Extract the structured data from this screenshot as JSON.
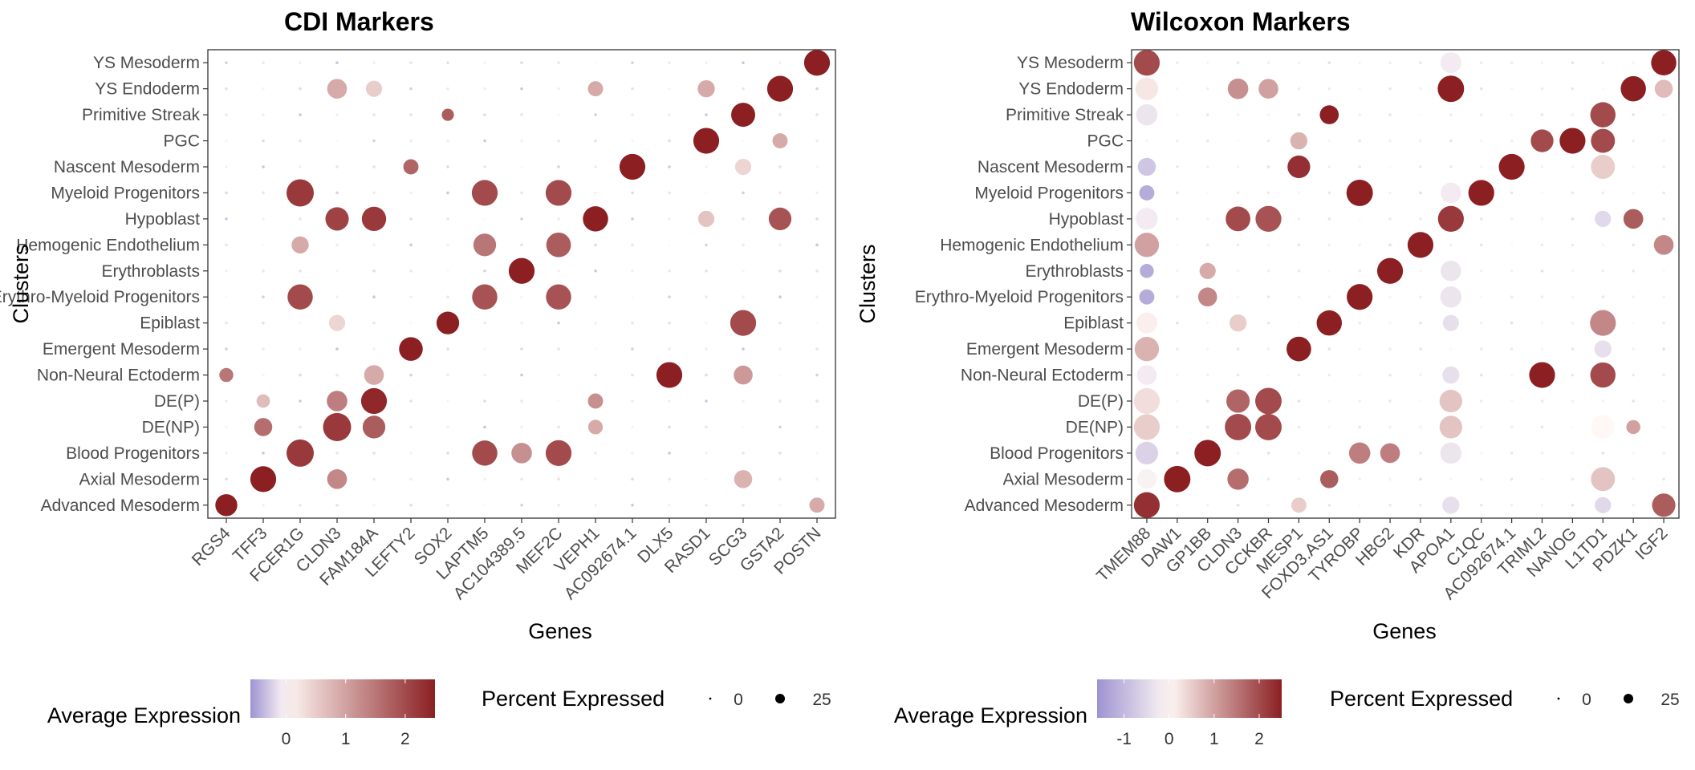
{
  "colors": {
    "low": "#9E93D1",
    "mid": "#FFF8F5",
    "high": "#8B1F22",
    "point_outline": "none"
  },
  "legend_labels": {
    "color_title": "Average Expression",
    "size_title": "Percent Expressed"
  },
  "chart_data": [
    {
      "type": "scatter",
      "title": "CDI Markers",
      "xlabel": "Genes",
      "ylabel": "Clusters",
      "clusters": [
        "Advanced Mesoderm",
        "Axial Mesoderm",
        "Blood Progenitors",
        "DE(NP)",
        "DE(P)",
        "Non-Neural Ectoderm",
        "Emergent Mesoderm",
        "Epiblast",
        "Erythro-Myeloid Progenitors",
        "Erythroblasts",
        "Hemogenic Endothelium",
        "Hypoblast",
        "Myeloid Progenitors",
        "Nascent Mesoderm",
        "PGC",
        "Primitive Streak",
        "YS Endoderm",
        "YS Mesoderm"
      ],
      "genes": [
        "RGS4",
        "TFF3",
        "FCER1G",
        "CLDN3",
        "FAM184A",
        "LEFTY2",
        "SOX2",
        "LAPTM5",
        "AC104389.5",
        "MEF2C",
        "VEPH1",
        "AC092674.1",
        "DLX5",
        "RASD1",
        "SCG3",
        "GSTA2",
        "POSTN"
      ],
      "color_scale": {
        "ticks": [
          0,
          1,
          2
        ],
        "range": [
          -0.6,
          2.5
        ]
      },
      "size_scale": {
        "ticks": [
          0,
          25
        ],
        "max_pct": 45
      },
      "points": [
        {
          "gene": "RGS4",
          "cluster": "Advanced Mesoderm",
          "expr": 2.5,
          "pct": 28
        },
        {
          "gene": "RGS4",
          "cluster": "Non-Neural Ectoderm",
          "expr": 1.5,
          "pct": 10
        },
        {
          "gene": "TFF3",
          "cluster": "Axial Mesoderm",
          "expr": 2.5,
          "pct": 40
        },
        {
          "gene": "TFF3",
          "cluster": "DE(NP)",
          "expr": 1.6,
          "pct": 18
        },
        {
          "gene": "TFF3",
          "cluster": "DE(P)",
          "expr": 0.7,
          "pct": 9
        },
        {
          "gene": "FCER1G",
          "cluster": "Blood Progenitors",
          "expr": 2.2,
          "pct": 45
        },
        {
          "gene": "FCER1G",
          "cluster": "Myeloid Progenitors",
          "expr": 2.2,
          "pct": 45
        },
        {
          "gene": "FCER1G",
          "cluster": "Erythro-Myeloid Progenitors",
          "expr": 2.0,
          "pct": 38
        },
        {
          "gene": "FCER1G",
          "cluster": "Hemogenic Endothelium",
          "expr": 0.9,
          "pct": 16
        },
        {
          "gene": "CLDN3",
          "cluster": "DE(NP)",
          "expr": 2.2,
          "pct": 48
        },
        {
          "gene": "CLDN3",
          "cluster": "Hypoblast",
          "expr": 2.1,
          "pct": 32
        },
        {
          "gene": "CLDN3",
          "cluster": "DE(P)",
          "expr": 1.4,
          "pct": 24
        },
        {
          "gene": "CLDN3",
          "cluster": "Axial Mesoderm",
          "expr": 1.3,
          "pct": 22
        },
        {
          "gene": "CLDN3",
          "cluster": "YS Endoderm",
          "expr": 0.9,
          "pct": 22
        },
        {
          "gene": "CLDN3",
          "cluster": "Epiblast",
          "expr": 0.4,
          "pct": 14
        },
        {
          "gene": "FAM184A",
          "cluster": "DE(P)",
          "expr": 2.4,
          "pct": 40
        },
        {
          "gene": "FAM184A",
          "cluster": "Hypoblast",
          "expr": 2.2,
          "pct": 35
        },
        {
          "gene": "FAM184A",
          "cluster": "DE(NP)",
          "expr": 1.8,
          "pct": 30
        },
        {
          "gene": "FAM184A",
          "cluster": "Non-Neural Ectoderm",
          "expr": 0.9,
          "pct": 22
        },
        {
          "gene": "FAM184A",
          "cluster": "YS Endoderm",
          "expr": 0.5,
          "pct": 14
        },
        {
          "gene": "LEFTY2",
          "cluster": "Emergent Mesoderm",
          "expr": 2.5,
          "pct": 33
        },
        {
          "gene": "LEFTY2",
          "cluster": "Nascent Mesoderm",
          "expr": 1.7,
          "pct": 12
        },
        {
          "gene": "SOX2",
          "cluster": "Epiblast",
          "expr": 2.5,
          "pct": 30
        },
        {
          "gene": "SOX2",
          "cluster": "Primitive Streak",
          "expr": 1.8,
          "pct": 7
        },
        {
          "gene": "LAPTM5",
          "cluster": "Blood Progenitors",
          "expr": 2.0,
          "pct": 38
        },
        {
          "gene": "LAPTM5",
          "cluster": "Myeloid Progenitors",
          "expr": 2.0,
          "pct": 40
        },
        {
          "gene": "LAPTM5",
          "cluster": "Erythro-Myeloid Progenitors",
          "expr": 1.9,
          "pct": 38
        },
        {
          "gene": "LAPTM5",
          "cluster": "Hemogenic Endothelium",
          "expr": 1.5,
          "pct": 30
        },
        {
          "gene": "AC104389.5",
          "cluster": "Erythroblasts",
          "expr": 2.5,
          "pct": 40
        },
        {
          "gene": "AC104389.5",
          "cluster": "Blood Progenitors",
          "expr": 1.2,
          "pct": 24
        },
        {
          "gene": "MEF2C",
          "cluster": "Blood Progenitors",
          "expr": 2.0,
          "pct": 40
        },
        {
          "gene": "MEF2C",
          "cluster": "Myeloid Progenitors",
          "expr": 2.0,
          "pct": 40
        },
        {
          "gene": "MEF2C",
          "cluster": "Erythro-Myeloid Progenitors",
          "expr": 1.9,
          "pct": 38
        },
        {
          "gene": "MEF2C",
          "cluster": "Hemogenic Endothelium",
          "expr": 1.8,
          "pct": 36
        },
        {
          "gene": "VEPH1",
          "cluster": "Hypoblast",
          "expr": 2.5,
          "pct": 38
        },
        {
          "gene": "VEPH1",
          "cluster": "DE(P)",
          "expr": 1.2,
          "pct": 12
        },
        {
          "gene": "VEPH1",
          "cluster": "DE(NP)",
          "expr": 0.9,
          "pct": 11
        },
        {
          "gene": "VEPH1",
          "cluster": "YS Endoderm",
          "expr": 0.9,
          "pct": 12
        },
        {
          "gene": "AC092674.1",
          "cluster": "Nascent Mesoderm",
          "expr": 2.5,
          "pct": 40
        },
        {
          "gene": "DLX5",
          "cluster": "Non-Neural Ectoderm",
          "expr": 2.5,
          "pct": 40
        },
        {
          "gene": "RASD1",
          "cluster": "PGC",
          "expr": 2.5,
          "pct": 40
        },
        {
          "gene": "RASD1",
          "cluster": "YS Endoderm",
          "expr": 0.9,
          "pct": 16
        },
        {
          "gene": "RASD1",
          "cluster": "Hypoblast",
          "expr": 0.6,
          "pct": 14
        },
        {
          "gene": "SCG3",
          "cluster": "Epiblast",
          "expr": 2.0,
          "pct": 40
        },
        {
          "gene": "SCG3",
          "cluster": "Primitive Streak",
          "expr": 2.5,
          "pct": 34
        },
        {
          "gene": "SCG3",
          "cluster": "Non-Neural Ectoderm",
          "expr": 1.1,
          "pct": 20
        },
        {
          "gene": "SCG3",
          "cluster": "Axial Mesoderm",
          "expr": 0.8,
          "pct": 18
        },
        {
          "gene": "SCG3",
          "cluster": "Nascent Mesoderm",
          "expr": 0.4,
          "pct": 14
        },
        {
          "gene": "GSTA2",
          "cluster": "YS Endoderm",
          "expr": 2.5,
          "pct": 40
        },
        {
          "gene": "GSTA2",
          "cluster": "Hypoblast",
          "expr": 1.9,
          "pct": 30
        },
        {
          "gene": "GSTA2",
          "cluster": "PGC",
          "expr": 0.9,
          "pct": 12
        },
        {
          "gene": "POSTN",
          "cluster": "YS Mesoderm",
          "expr": 2.5,
          "pct": 40
        },
        {
          "gene": "POSTN",
          "cluster": "Advanced Mesoderm",
          "expr": 0.9,
          "pct": 12
        }
      ]
    },
    {
      "type": "scatter",
      "title": "Wilcoxon Markers",
      "xlabel": "Genes",
      "ylabel": "Clusters",
      "clusters": [
        "Advanced Mesoderm",
        "Axial Mesoderm",
        "Blood Progenitors",
        "DE(NP)",
        "DE(P)",
        "Non-Neural Ectoderm",
        "Emergent Mesoderm",
        "Epiblast",
        "Erythro-Myeloid Progenitors",
        "Erythroblasts",
        "Hemogenic Endothelium",
        "Hypoblast",
        "Myeloid Progenitors",
        "Nascent Mesoderm",
        "PGC",
        "Primitive Streak",
        "YS Endoderm",
        "YS Mesoderm"
      ],
      "genes": [
        "TMEM88",
        "DAW1",
        "GP1BB",
        "CLDN3",
        "CCKBR",
        "MESP1",
        "FOXD3.AS1",
        "TYROBP",
        "HBG2",
        "KDR",
        "APOA1",
        "C1QC",
        "AC092674.1",
        "TRIML2",
        "NANOG",
        "L1TD1",
        "PDZK1",
        "IGF2"
      ],
      "color_scale": {
        "ticks": [
          -1,
          0,
          1,
          2
        ],
        "range": [
          -1.6,
          2.5
        ]
      },
      "size_scale": {
        "ticks": [
          0,
          25
        ],
        "max_pct": 45
      },
      "points": [
        {
          "gene": "TMEM88",
          "cluster": "Advanced Mesoderm",
          "expr": 2.3,
          "pct": 40
        },
        {
          "gene": "TMEM88",
          "cluster": "YS Mesoderm",
          "expr": 2.0,
          "pct": 40
        },
        {
          "gene": "TMEM88",
          "cluster": "Hemogenic Endothelium",
          "expr": 1.0,
          "pct": 35
        },
        {
          "gene": "TMEM88",
          "cluster": "Emergent Mesoderm",
          "expr": 0.8,
          "pct": 35
        },
        {
          "gene": "TMEM88",
          "cluster": "DE(NP)",
          "expr": 0.5,
          "pct": 40
        },
        {
          "gene": "TMEM88",
          "cluster": "DE(P)",
          "expr": 0.3,
          "pct": 40
        },
        {
          "gene": "TMEM88",
          "cluster": "YS Endoderm",
          "expr": 0.2,
          "pct": 30
        },
        {
          "gene": "TMEM88",
          "cluster": "Epiblast",
          "expr": 0.1,
          "pct": 25
        },
        {
          "gene": "TMEM88",
          "cluster": "Blood Progenitors",
          "expr": -0.6,
          "pct": 30
        },
        {
          "gene": "TMEM88",
          "cluster": "Primitive Streak",
          "expr": -0.3,
          "pct": 26
        },
        {
          "gene": "TMEM88",
          "cluster": "Hypoblast",
          "expr": -0.2,
          "pct": 28
        },
        {
          "gene": "TMEM88",
          "cluster": "Non-Neural Ectoderm",
          "expr": -0.2,
          "pct": 22
        },
        {
          "gene": "TMEM88",
          "cluster": "Axial Mesoderm",
          "expr": -0.1,
          "pct": 22
        },
        {
          "gene": "TMEM88",
          "cluster": "Nascent Mesoderm",
          "expr": -0.8,
          "pct": 18
        },
        {
          "gene": "TMEM88",
          "cluster": "Myeloid Progenitors",
          "expr": -1.2,
          "pct": 12
        },
        {
          "gene": "TMEM88",
          "cluster": "Erythro-Myeloid Progenitors",
          "expr": -1.2,
          "pct": 12
        },
        {
          "gene": "TMEM88",
          "cluster": "Erythroblasts",
          "expr": -1.2,
          "pct": 10
        },
        {
          "gene": "DAW1",
          "cluster": "Axial Mesoderm",
          "expr": 2.5,
          "pct": 42
        },
        {
          "gene": "GP1BB",
          "cluster": "Blood Progenitors",
          "expr": 2.5,
          "pct": 42
        },
        {
          "gene": "GP1BB",
          "cluster": "Erythro-Myeloid Progenitors",
          "expr": 1.3,
          "pct": 20
        },
        {
          "gene": "GP1BB",
          "cluster": "Erythroblasts",
          "expr": 0.9,
          "pct": 14
        },
        {
          "gene": "CLDN3",
          "cluster": "DE(NP)",
          "expr": 2.0,
          "pct": 42
        },
        {
          "gene": "CLDN3",
          "cluster": "Hypoblast",
          "expr": 2.0,
          "pct": 36
        },
        {
          "gene": "CLDN3",
          "cluster": "DE(P)",
          "expr": 1.7,
          "pct": 32
        },
        {
          "gene": "CLDN3",
          "cluster": "Axial Mesoderm",
          "expr": 1.6,
          "pct": 26
        },
        {
          "gene": "CLDN3",
          "cluster": "YS Endoderm",
          "expr": 1.2,
          "pct": 24
        },
        {
          "gene": "CLDN3",
          "cluster": "Epiblast",
          "expr": 0.5,
          "pct": 16
        },
        {
          "gene": "CCKBR",
          "cluster": "DE(NP)",
          "expr": 2.0,
          "pct": 42
        },
        {
          "gene": "CCKBR",
          "cluster": "DE(P)",
          "expr": 2.0,
          "pct": 42
        },
        {
          "gene": "CCKBR",
          "cluster": "Hypoblast",
          "expr": 1.9,
          "pct": 40
        },
        {
          "gene": "CCKBR",
          "cluster": "YS Endoderm",
          "expr": 1.0,
          "pct": 22
        },
        {
          "gene": "MESP1",
          "cluster": "Emergent Mesoderm",
          "expr": 2.5,
          "pct": 36
        },
        {
          "gene": "MESP1",
          "cluster": "Nascent Mesoderm",
          "expr": 2.3,
          "pct": 30
        },
        {
          "gene": "MESP1",
          "cluster": "PGC",
          "expr": 0.8,
          "pct": 16
        },
        {
          "gene": "MESP1",
          "cluster": "Advanced Mesoderm",
          "expr": 0.5,
          "pct": 12
        },
        {
          "gene": "FOXD3.AS1",
          "cluster": "Epiblast",
          "expr": 2.5,
          "pct": 38
        },
        {
          "gene": "FOXD3.AS1",
          "cluster": "Primitive Streak",
          "expr": 2.5,
          "pct": 20
        },
        {
          "gene": "FOXD3.AS1",
          "cluster": "Axial Mesoderm",
          "expr": 1.8,
          "pct": 18
        },
        {
          "gene": "TYROBP",
          "cluster": "Myeloid Progenitors",
          "expr": 2.5,
          "pct": 42
        },
        {
          "gene": "TYROBP",
          "cluster": "Erythro-Myeloid Progenitors",
          "expr": 2.5,
          "pct": 40
        },
        {
          "gene": "TYROBP",
          "cluster": "Blood Progenitors",
          "expr": 1.4,
          "pct": 26
        },
        {
          "gene": "HBG2",
          "cluster": "Erythroblasts",
          "expr": 2.5,
          "pct": 40
        },
        {
          "gene": "HBG2",
          "cluster": "Blood Progenitors",
          "expr": 1.4,
          "pct": 22
        },
        {
          "gene": "KDR",
          "cluster": "Hemogenic Endothelium",
          "expr": 2.5,
          "pct": 40
        },
        {
          "gene": "APOA1",
          "cluster": "YS Endoderm",
          "expr": 2.5,
          "pct": 42
        },
        {
          "gene": "APOA1",
          "cluster": "Hypoblast",
          "expr": 2.2,
          "pct": 40
        },
        {
          "gene": "APOA1",
          "cluster": "DE(NP)",
          "expr": 0.6,
          "pct": 30
        },
        {
          "gene": "APOA1",
          "cluster": "DE(P)",
          "expr": 0.6,
          "pct": 30
        },
        {
          "gene": "APOA1",
          "cluster": "YS Mesoderm",
          "expr": -0.2,
          "pct": 25
        },
        {
          "gene": "APOA1",
          "cluster": "Erythroblasts",
          "expr": -0.3,
          "pct": 24
        },
        {
          "gene": "APOA1",
          "cluster": "Myeloid Progenitors",
          "expr": -0.2,
          "pct": 24
        },
        {
          "gene": "APOA1",
          "cluster": "Erythro-Myeloid Progenitors",
          "expr": -0.3,
          "pct": 26
        },
        {
          "gene": "APOA1",
          "cluster": "Blood Progenitors",
          "expr": -0.3,
          "pct": 26
        },
        {
          "gene": "APOA1",
          "cluster": "Non-Neural Ectoderm",
          "expr": -0.4,
          "pct": 16
        },
        {
          "gene": "APOA1",
          "cluster": "Advanced Mesoderm",
          "expr": -0.4,
          "pct": 16
        },
        {
          "gene": "APOA1",
          "cluster": "Epiblast",
          "expr": -0.4,
          "pct": 14
        },
        {
          "gene": "C1QC",
          "cluster": "Myeloid Progenitors",
          "expr": 2.5,
          "pct": 40
        },
        {
          "gene": "AC092674.1",
          "cluster": "Nascent Mesoderm",
          "expr": 2.5,
          "pct": 40
        },
        {
          "gene": "TRIML2",
          "cluster": "Non-Neural Ectoderm",
          "expr": 2.5,
          "pct": 40
        },
        {
          "gene": "TRIML2",
          "cluster": "PGC",
          "expr": 2.0,
          "pct": 30
        },
        {
          "gene": "NANOG",
          "cluster": "PGC",
          "expr": 2.5,
          "pct": 40
        },
        {
          "gene": "L1TD1",
          "cluster": "Primitive Streak",
          "expr": 2.0,
          "pct": 38
        },
        {
          "gene": "L1TD1",
          "cluster": "PGC",
          "expr": 2.0,
          "pct": 34
        },
        {
          "gene": "L1TD1",
          "cluster": "Non-Neural Ectoderm",
          "expr": 2.0,
          "pct": 38
        },
        {
          "gene": "L1TD1",
          "cluster": "Epiblast",
          "expr": 1.3,
          "pct": 40
        },
        {
          "gene": "L1TD1",
          "cluster": "Nascent Mesoderm",
          "expr": 0.5,
          "pct": 34
        },
        {
          "gene": "L1TD1",
          "cluster": "Axial Mesoderm",
          "expr": 0.6,
          "pct": 34
        },
        {
          "gene": "L1TD1",
          "cluster": "DE(NP)",
          "expr": 0.0,
          "pct": 32
        },
        {
          "gene": "L1TD1",
          "cluster": "Emergent Mesoderm",
          "expr": -0.4,
          "pct": 16
        },
        {
          "gene": "L1TD1",
          "cluster": "Hypoblast",
          "expr": -0.5,
          "pct": 14
        },
        {
          "gene": "L1TD1",
          "cluster": "Advanced Mesoderm",
          "expr": -0.5,
          "pct": 14
        },
        {
          "gene": "PDZK1",
          "cluster": "YS Endoderm",
          "expr": 2.5,
          "pct": 38
        },
        {
          "gene": "PDZK1",
          "cluster": "Hypoblast",
          "expr": 1.8,
          "pct": 22
        },
        {
          "gene": "PDZK1",
          "cluster": "DE(NP)",
          "expr": 1.0,
          "pct": 10
        },
        {
          "gene": "IGF2",
          "cluster": "YS Mesoderm",
          "expr": 2.5,
          "pct": 38
        },
        {
          "gene": "IGF2",
          "cluster": "Advanced Mesoderm",
          "expr": 1.8,
          "pct": 32
        },
        {
          "gene": "IGF2",
          "cluster": "Hemogenic Endothelium",
          "expr": 1.3,
          "pct": 22
        },
        {
          "gene": "IGF2",
          "cluster": "YS Endoderm",
          "expr": 0.7,
          "pct": 18
        }
      ]
    }
  ]
}
